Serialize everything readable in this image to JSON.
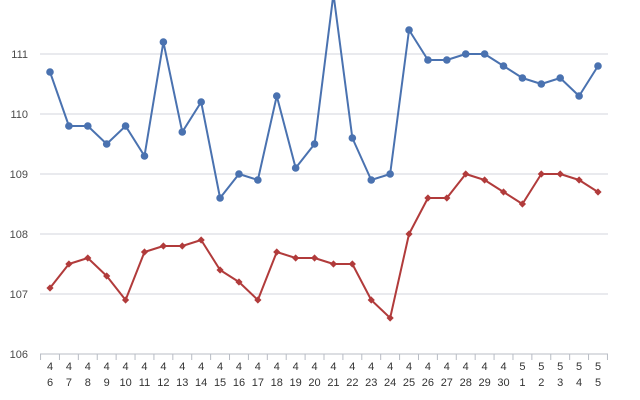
{
  "chart_data": {
    "type": "line",
    "title": "",
    "xlabel": "",
    "ylabel": "",
    "ylim": [
      106,
      111.9
    ],
    "yticks": [
      106,
      107,
      108,
      109,
      110,
      111
    ],
    "grid": true,
    "categories": [
      [
        "4",
        "6"
      ],
      [
        "4",
        "7"
      ],
      [
        "4",
        "8"
      ],
      [
        "4",
        "9"
      ],
      [
        "4",
        "10"
      ],
      [
        "4",
        "11"
      ],
      [
        "4",
        "12"
      ],
      [
        "4",
        "13"
      ],
      [
        "4",
        "14"
      ],
      [
        "4",
        "15"
      ],
      [
        "4",
        "16"
      ],
      [
        "4",
        "17"
      ],
      [
        "4",
        "18"
      ],
      [
        "4",
        "19"
      ],
      [
        "4",
        "20"
      ],
      [
        "4",
        "21"
      ],
      [
        "4",
        "22"
      ],
      [
        "4",
        "23"
      ],
      [
        "4",
        "24"
      ],
      [
        "4",
        "25"
      ],
      [
        "4",
        "26"
      ],
      [
        "4",
        "27"
      ],
      [
        "4",
        "28"
      ],
      [
        "4",
        "29"
      ],
      [
        "4",
        "30"
      ],
      [
        "5",
        "1"
      ],
      [
        "5",
        "2"
      ],
      [
        "5",
        "3"
      ],
      [
        "5",
        "4"
      ],
      [
        "5",
        "5"
      ]
    ],
    "series": [
      {
        "color": "#4a72b0",
        "marker": "circle",
        "values": [
          110.7,
          109.8,
          109.8,
          109.5,
          109.8,
          109.3,
          111.2,
          109.7,
          110.2,
          108.6,
          109.0,
          108.9,
          110.3,
          109.1,
          109.5,
          112.0,
          109.6,
          108.9,
          109.0,
          111.4,
          110.9,
          110.9,
          111.0,
          111.0,
          110.8,
          110.6,
          110.5,
          110.6,
          110.3,
          110.8
        ]
      },
      {
        "color": "#b13b3b",
        "marker": "diamond",
        "values": [
          107.1,
          107.5,
          107.6,
          107.3,
          106.9,
          107.7,
          107.8,
          107.8,
          107.9,
          107.4,
          107.2,
          106.9,
          107.7,
          107.6,
          107.6,
          107.5,
          107.5,
          106.9,
          106.6,
          108.0,
          108.6,
          108.6,
          109.0,
          108.9,
          108.7,
          108.5,
          109.0,
          109.0,
          108.9,
          108.7
        ]
      }
    ]
  }
}
